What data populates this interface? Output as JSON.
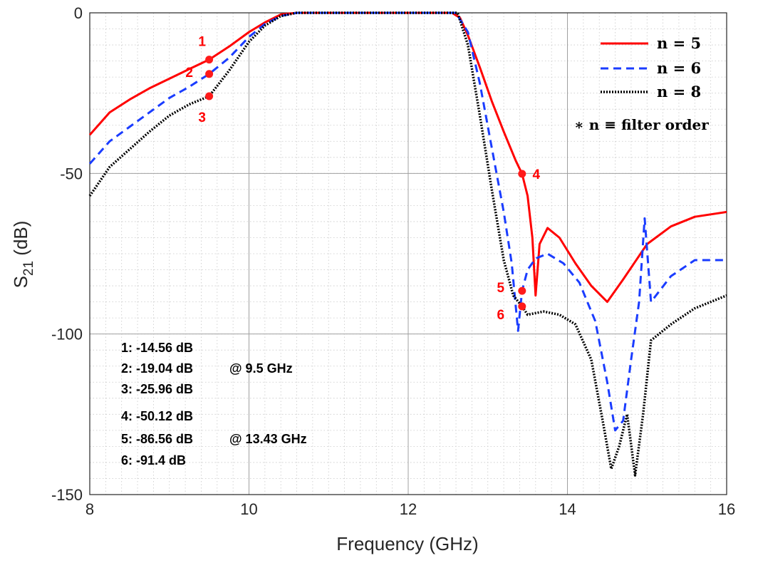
{
  "chart_data": {
    "type": "line",
    "xlabel": "Frequency (GHz)",
    "ylabel_main": "S",
    "ylabel_sub": "21",
    "ylabel_unit": " (dB)",
    "xlim": [
      8,
      16
    ],
    "ylim": [
      -150,
      0
    ],
    "xticks": [
      8,
      10,
      12,
      14,
      16
    ],
    "yticks": [
      0,
      -50,
      -100,
      -150
    ],
    "grid": true,
    "minor_grid": true,
    "legend_position": "top-right",
    "colors": {
      "n5": "#ff0000",
      "n6": "#1a3cff",
      "n8": "#000000",
      "marker": "#ff1a1a"
    },
    "series": [
      {
        "name": "n = 5",
        "style": "solid",
        "x": [
          8,
          8.25,
          8.5,
          8.75,
          9,
          9.25,
          9.5,
          9.75,
          10,
          10.2,
          10.4,
          10.6,
          11,
          11.5,
          12,
          12.3,
          12.55,
          12.65,
          12.75,
          12.9,
          13.05,
          13.2,
          13.35,
          13.43,
          13.5,
          13.56,
          13.6,
          13.65,
          13.75,
          13.9,
          14.1,
          14.3,
          14.5,
          14.7,
          15,
          15.3,
          15.6,
          16
        ],
        "y": [
          -38,
          -31,
          -27,
          -23.5,
          -20.5,
          -17.5,
          -14.56,
          -10.5,
          -6,
          -3,
          -0.5,
          0,
          0,
          0,
          0,
          0,
          0,
          -1.5,
          -7,
          -17,
          -27.5,
          -37,
          -46,
          -50.12,
          -57,
          -70,
          -88,
          -72,
          -67,
          -70,
          -78,
          -85,
          -90,
          -83,
          -72,
          -66.5,
          -63.5,
          -62
        ]
      },
      {
        "name": "n = 6",
        "style": "dashed",
        "x": [
          8,
          8.25,
          8.5,
          8.75,
          9,
          9.25,
          9.5,
          9.75,
          10,
          10.2,
          10.4,
          10.6,
          11,
          11.5,
          12,
          12.4,
          12.6,
          12.75,
          12.9,
          13.05,
          13.2,
          13.3,
          13.38,
          13.43,
          13.5,
          13.6,
          13.75,
          13.95,
          14.15,
          14.35,
          14.5,
          14.6,
          14.7,
          14.8,
          14.9,
          14.97,
          15.05,
          15.3,
          15.6,
          16
        ],
        "y": [
          -47,
          -40,
          -35.5,
          -31,
          -26.5,
          -23,
          -19.04,
          -14,
          -7.5,
          -3.5,
          -1,
          0,
          0,
          0,
          0,
          0,
          0,
          -6,
          -22,
          -42,
          -62,
          -78,
          -99,
          -86.56,
          -80,
          -76.5,
          -75,
          -78,
          -84,
          -96,
          -115,
          -130,
          -127,
          -108,
          -90,
          -64,
          -90,
          -82,
          -77,
          -77
        ]
      },
      {
        "name": "n = 8",
        "style": "dotted",
        "x": [
          8,
          8.25,
          8.5,
          8.75,
          9,
          9.25,
          9.5,
          9.75,
          10,
          10.2,
          10.4,
          10.6,
          11,
          11.5,
          12,
          12.5,
          12.62,
          12.75,
          12.9,
          13.05,
          13.2,
          13.32,
          13.43,
          13.5,
          13.7,
          13.9,
          14.1,
          14.3,
          14.45,
          14.55,
          14.65,
          14.75,
          14.85,
          14.95,
          15.05,
          15.3,
          15.6,
          16
        ],
        "y": [
          -57,
          -48,
          -42.5,
          -37,
          -32,
          -28.5,
          -25.96,
          -18,
          -9,
          -4,
          -1,
          0,
          0,
          0,
          0,
          0,
          0,
          -10,
          -32,
          -55,
          -77,
          -88,
          -91.4,
          -94,
          -93,
          -94,
          -97,
          -108,
          -128,
          -142,
          -135,
          -125,
          -144,
          -125,
          -102,
          -97,
          -92,
          -88
        ]
      }
    ],
    "markers": [
      {
        "label": "1",
        "x": 9.5,
        "y": -14.56
      },
      {
        "label": "2",
        "x": 9.5,
        "y": -19.04
      },
      {
        "label": "3",
        "x": 9.5,
        "y": -25.96
      },
      {
        "label": "4",
        "x": 13.43,
        "y": -50.12
      },
      {
        "label": "5",
        "x": 13.43,
        "y": -86.56
      },
      {
        "label": "6",
        "x": 13.43,
        "y": -91.4
      }
    ],
    "legend": {
      "entries": [
        "n = 5",
        "n = 6",
        "n = 8"
      ],
      "note": "∗ n ≡ filter order"
    },
    "annotations": {
      "group1": [
        "1: -14.56 dB",
        "2: -19.04 dB",
        "3: -25.96 dB"
      ],
      "group1_freq": "@ 9.5 GHz",
      "group2": [
        "4: -50.12 dB",
        "5: -86.56 dB",
        "6: -91.4 dB"
      ],
      "group2_freq": "@ 13.43 GHz"
    }
  }
}
